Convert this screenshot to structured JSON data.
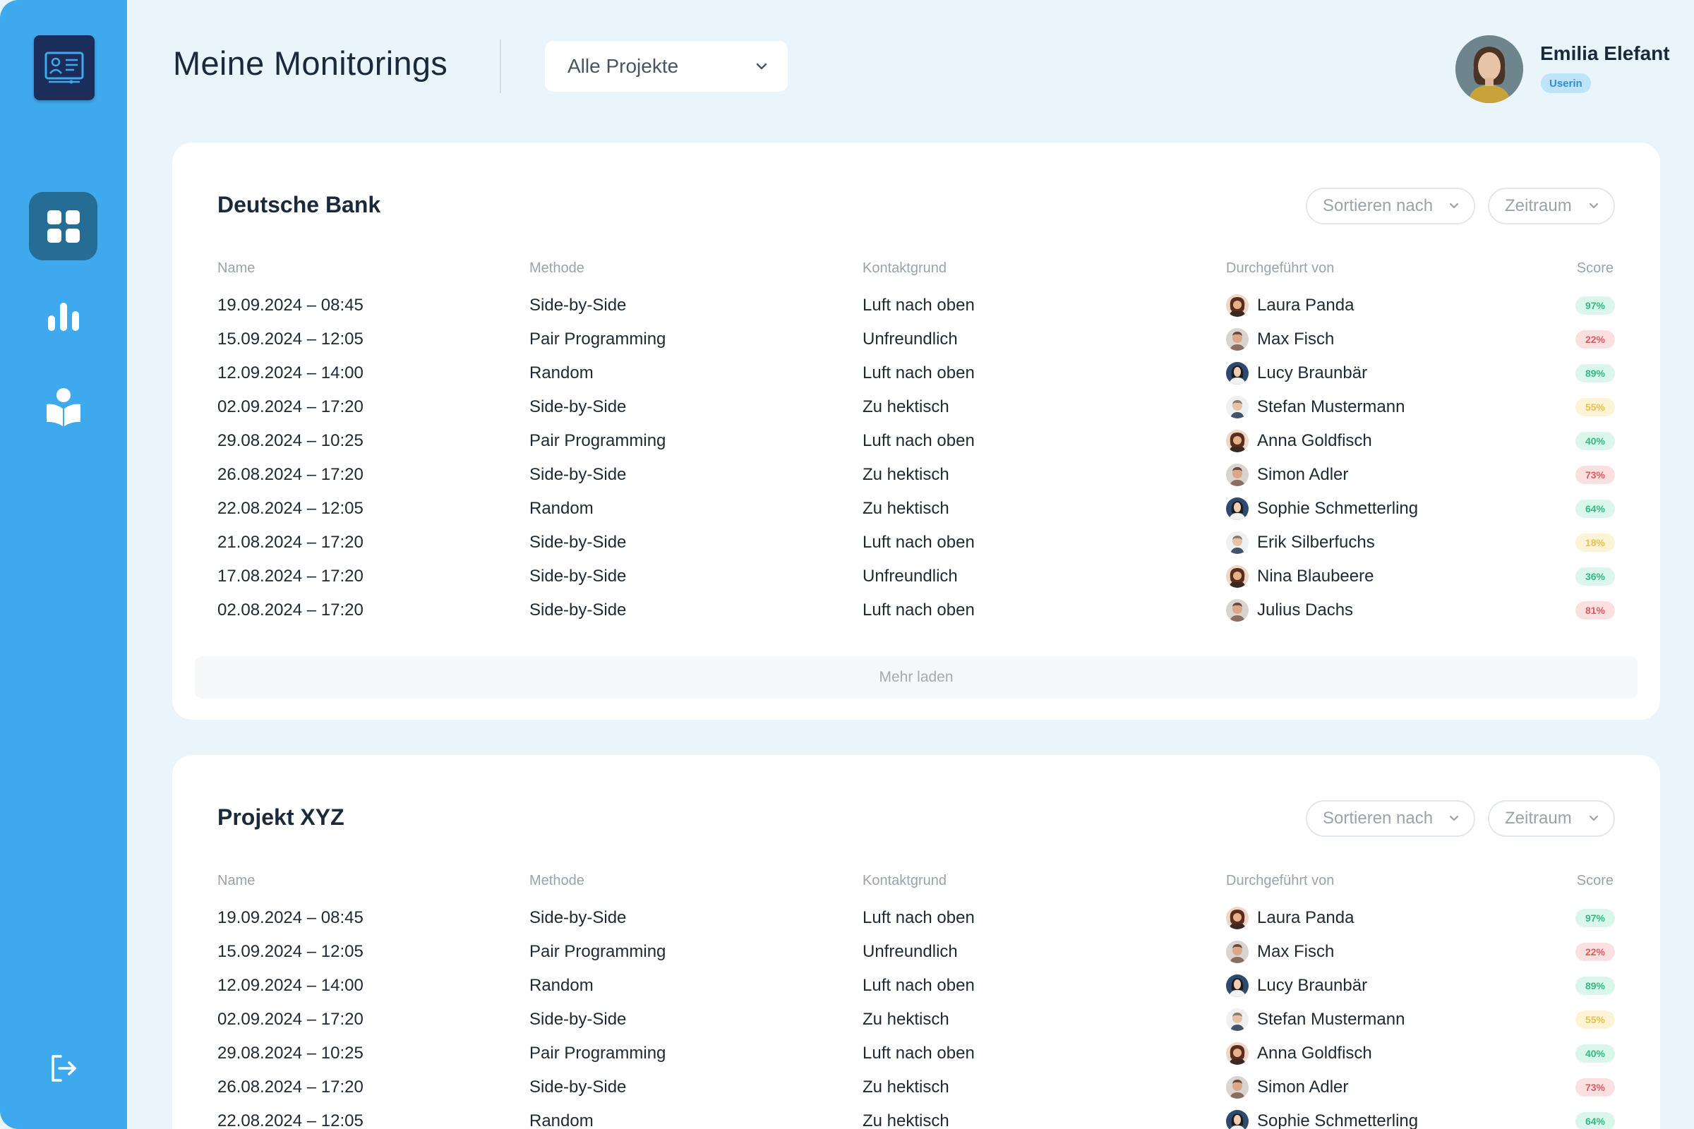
{
  "header": {
    "title": "Meine Monitorings",
    "project_select": "Alle Projekte"
  },
  "user": {
    "name": "Emilia Elefant",
    "role": "Userin"
  },
  "columns": {
    "name": "Name",
    "method": "Methode",
    "reason": "Kontaktgrund",
    "by": "Durchgeführt von",
    "score": "Score"
  },
  "controls": {
    "sort_label": "Sortieren nach",
    "period_label": "Zeitraum",
    "load_more": "Mehr laden"
  },
  "colors": {
    "sidebar": "#3fa9ed",
    "active_nav": "#266d96",
    "score_green": "#2dbd83",
    "score_red": "#e0595f",
    "score_yellow": "#e9c04b"
  },
  "cards": [
    {
      "title": "Deutsche Bank",
      "rows": [
        {
          "name": "19.09.2024 – 08:45",
          "method": "Side-by-Side",
          "reason": "Luft nach oben",
          "by": "Laura Panda",
          "avatar": "a",
          "score": "97%",
          "level": "green"
        },
        {
          "name": "15.09.2024 – 12:05",
          "method": "Pair Programming",
          "reason": "Unfreundlich",
          "by": "Max Fisch",
          "avatar": "b",
          "score": "22%",
          "level": "red"
        },
        {
          "name": "12.09.2024 – 14:00",
          "method": "Random",
          "reason": "Luft nach oben",
          "by": "Lucy Braunbär",
          "avatar": "c",
          "score": "89%",
          "level": "green"
        },
        {
          "name": "02.09.2024 – 17:20",
          "method": "Side-by-Side",
          "reason": "Zu hektisch",
          "by": "Stefan Mustermann",
          "avatar": "d",
          "score": "55%",
          "level": "yellow"
        },
        {
          "name": "29.08.2024 – 10:25",
          "method": "Pair Programming",
          "reason": "Luft nach oben",
          "by": "Anna Goldfisch",
          "avatar": "a",
          "score": "40%",
          "level": "green"
        },
        {
          "name": "26.08.2024 – 17:20",
          "method": "Side-by-Side",
          "reason": "Zu hektisch",
          "by": "Simon Adler",
          "avatar": "b",
          "score": "73%",
          "level": "red"
        },
        {
          "name": "22.08.2024 – 12:05",
          "method": "Random",
          "reason": "Zu hektisch",
          "by": "Sophie Schmetterling",
          "avatar": "c",
          "score": "64%",
          "level": "green"
        },
        {
          "name": "21.08.2024 – 17:20",
          "method": "Side-by-Side",
          "reason": "Luft nach oben",
          "by": "Erik Silberfuchs",
          "avatar": "d",
          "score": "18%",
          "level": "yellow"
        },
        {
          "name": "17.08.2024 – 17:20",
          "method": "Side-by-Side",
          "reason": "Unfreundlich",
          "by": "Nina Blaubeere",
          "avatar": "a",
          "score": "36%",
          "level": "green"
        },
        {
          "name": "02.08.2024 – 17:20",
          "method": "Side-by-Side",
          "reason": "Luft nach oben",
          "by": "Julius Dachs",
          "avatar": "b",
          "score": "81%",
          "level": "red"
        }
      ]
    },
    {
      "title": "Projekt XYZ",
      "rows": [
        {
          "name": "19.09.2024 – 08:45",
          "method": "Side-by-Side",
          "reason": "Luft nach oben",
          "by": "Laura Panda",
          "avatar": "a",
          "score": "97%",
          "level": "green"
        },
        {
          "name": "15.09.2024 – 12:05",
          "method": "Pair Programming",
          "reason": "Unfreundlich",
          "by": "Max Fisch",
          "avatar": "b",
          "score": "22%",
          "level": "red"
        },
        {
          "name": "12.09.2024 – 14:00",
          "method": "Random",
          "reason": "Luft nach oben",
          "by": "Lucy Braunbär",
          "avatar": "c",
          "score": "89%",
          "level": "green"
        },
        {
          "name": "02.09.2024 – 17:20",
          "method": "Side-by-Side",
          "reason": "Zu hektisch",
          "by": "Stefan Mustermann",
          "avatar": "d",
          "score": "55%",
          "level": "yellow"
        },
        {
          "name": "29.08.2024 – 10:25",
          "method": "Pair Programming",
          "reason": "Luft nach oben",
          "by": "Anna Goldfisch",
          "avatar": "a",
          "score": "40%",
          "level": "green"
        },
        {
          "name": "26.08.2024 – 17:20",
          "method": "Side-by-Side",
          "reason": "Zu hektisch",
          "by": "Simon Adler",
          "avatar": "b",
          "score": "73%",
          "level": "red"
        },
        {
          "name": "22.08.2024 – 12:05",
          "method": "Random",
          "reason": "Zu hektisch",
          "by": "Sophie Schmetterling",
          "avatar": "c",
          "score": "64%",
          "level": "green"
        }
      ]
    }
  ]
}
